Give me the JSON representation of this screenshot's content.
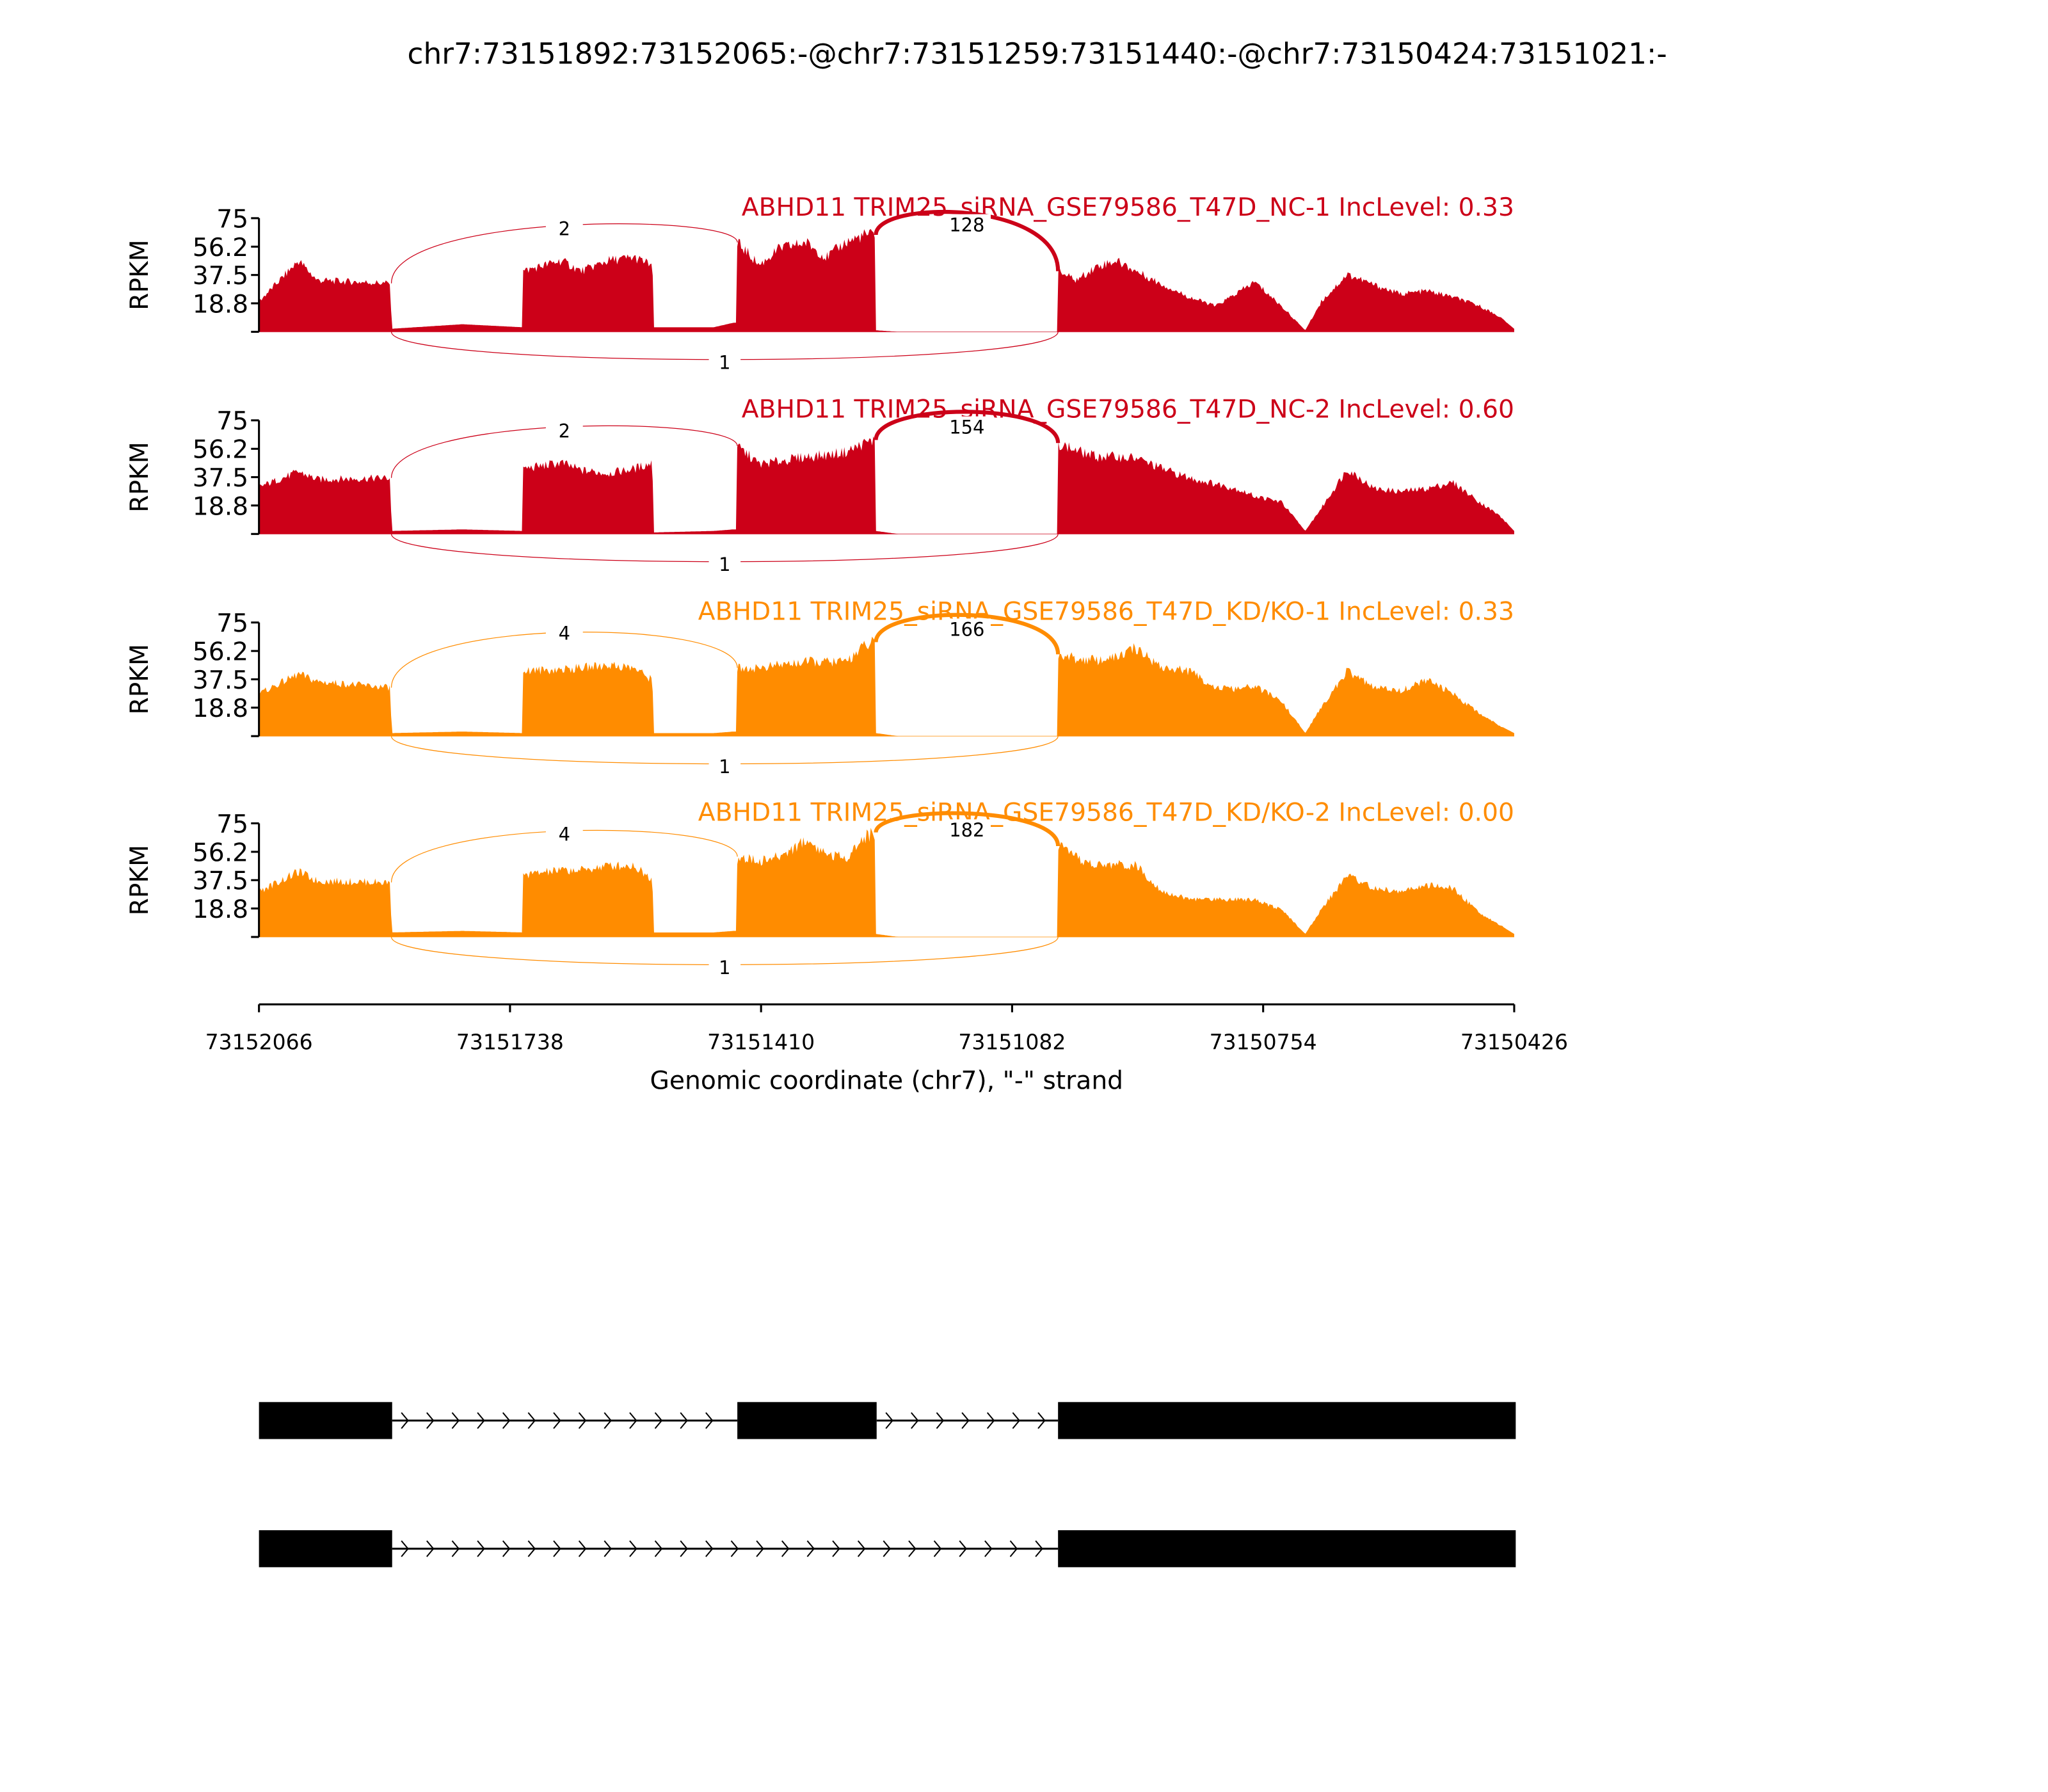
{
  "chart_data": {
    "type": "area",
    "title": "chr7:73151892:73152065:-@chr7:73151259:73151440:-@chr7:73150424:73151021:-",
    "xlabel": "Genomic coordinate (chr7), \"-\" strand",
    "ylabel": "RPKM",
    "xlim": [
      73152066,
      73150426
    ],
    "ylim": [
      0,
      75
    ],
    "yticks": [
      "75",
      "56.2",
      "37.5",
      "18.8"
    ],
    "ytick_values": [
      75,
      56.2,
      37.5,
      18.8
    ],
    "xticks": [
      "73152066",
      "73151738",
      "73151410",
      "73151082",
      "73150754",
      "73150426"
    ],
    "xtick_values": [
      73152066,
      73151738,
      73151410,
      73151082,
      73150754,
      73150426
    ],
    "coverage_offsets_bp": [
      0,
      52,
      76,
      172,
      173,
      266,
      344,
      345,
      395,
      421,
      456,
      490,
      514,
      516,
      594,
      620,
      624,
      625,
      654,
      680,
      715,
      741,
      766,
      792,
      805,
      806,
      835,
      1043,
      1044,
      1068,
      1094,
      1120,
      1146,
      1181,
      1215,
      1250,
      1276,
      1301,
      1336,
      1367,
      1388,
      1422,
      1457,
      1491,
      1526,
      1560,
      1595,
      1621,
      1640
    ],
    "junctions_bp": {
      "exon1_end": 173,
      "exon2_start": 625,
      "exon2_end": 806,
      "exon3_start": 1044
    },
    "series": [
      {
        "name": "ABHD11 TRIM25_siRNA_GSE79586_T47D_NC-1 IncLevel: 0.33",
        "color": "#cc0018",
        "junction_counts": {
          "upper_left": "2",
          "upper_right": "128",
          "skip": "1"
        },
        "values": [
          20,
          47,
          34,
          32,
          2,
          5,
          3,
          40,
          47,
          40,
          47,
          49,
          44,
          3,
          3,
          6,
          6,
          59,
          44,
          55,
          59,
          49,
          59,
          64,
          64,
          1,
          0,
          0,
          40,
          34,
          43,
          47,
          40,
          31,
          23,
          17,
          25,
          33,
          17,
          1,
          20,
          38,
          31,
          25,
          27,
          23,
          17,
          10,
          2
        ]
      },
      {
        "name": "ABHD11 TRIM25_siRNA_GSE79586_T47D_NC-2 IncLevel: 0.60",
        "color": "#cc0018",
        "junction_counts": {
          "upper_left": "2",
          "upper_right": "154",
          "skip": "1"
        },
        "values": [
          31,
          41,
          36,
          37,
          2,
          3,
          2,
          43,
          47,
          42,
          40,
          43,
          47,
          1,
          2,
          3,
          3,
          58,
          46,
          48,
          51,
          52,
          54,
          60,
          62,
          2,
          0,
          0,
          60,
          55,
          51,
          51,
          50,
          43,
          37,
          33,
          30,
          25,
          21,
          2,
          17,
          43,
          30,
          28,
          30,
          34,
          21,
          12,
          2
        ]
      },
      {
        "name": "ABHD11 TRIM25_siRNA_GSE79586_T47D_KD/KO-1 IncLevel: 0.33",
        "color": "#ff8c00",
        "junction_counts": {
          "upper_left": "4",
          "upper_right": "166",
          "skip": "1"
        },
        "values": [
          28,
          41,
          36,
          32,
          2,
          3,
          2,
          43,
          44,
          45,
          47,
          45,
          37,
          2,
          2,
          3,
          3,
          45,
          45,
          47,
          49,
          49,
          49,
          60,
          62,
          2,
          0,
          0,
          54,
          51,
          50,
          52,
          58,
          45,
          43,
          32,
          31,
          33,
          23,
          2,
          19,
          43,
          32,
          30,
          37,
          28,
          15,
          7,
          2
        ]
      },
      {
        "name": "ABHD11 TRIM25_siRNA_GSE79586_T47D_KD/KO-2 IncLevel: 0.00",
        "color": "#ff8c00",
        "junction_counts": {
          "upper_left": "4",
          "upper_right": "182",
          "skip": "1"
        },
        "values": [
          30,
          43,
          37,
          36,
          3,
          4,
          3,
          41,
          44,
          44,
          47,
          47,
          38,
          3,
          3,
          4,
          4,
          53,
          50,
          53,
          64,
          55,
          52,
          66,
          69,
          2,
          0,
          0,
          60,
          52,
          47,
          48,
          47,
          30,
          25,
          25,
          25,
          25,
          18,
          2,
          18,
          41,
          32,
          30,
          34,
          32,
          16,
          8,
          2
        ]
      }
    ],
    "isoforms": [
      {
        "exons": [
          [
            73152065,
            73151892
          ],
          [
            73151440,
            73151259
          ],
          [
            73151021,
            73150424
          ]
        ]
      },
      {
        "exons": [
          [
            73152065,
            73151892
          ],
          [
            73151021,
            73150424
          ]
        ]
      }
    ]
  }
}
